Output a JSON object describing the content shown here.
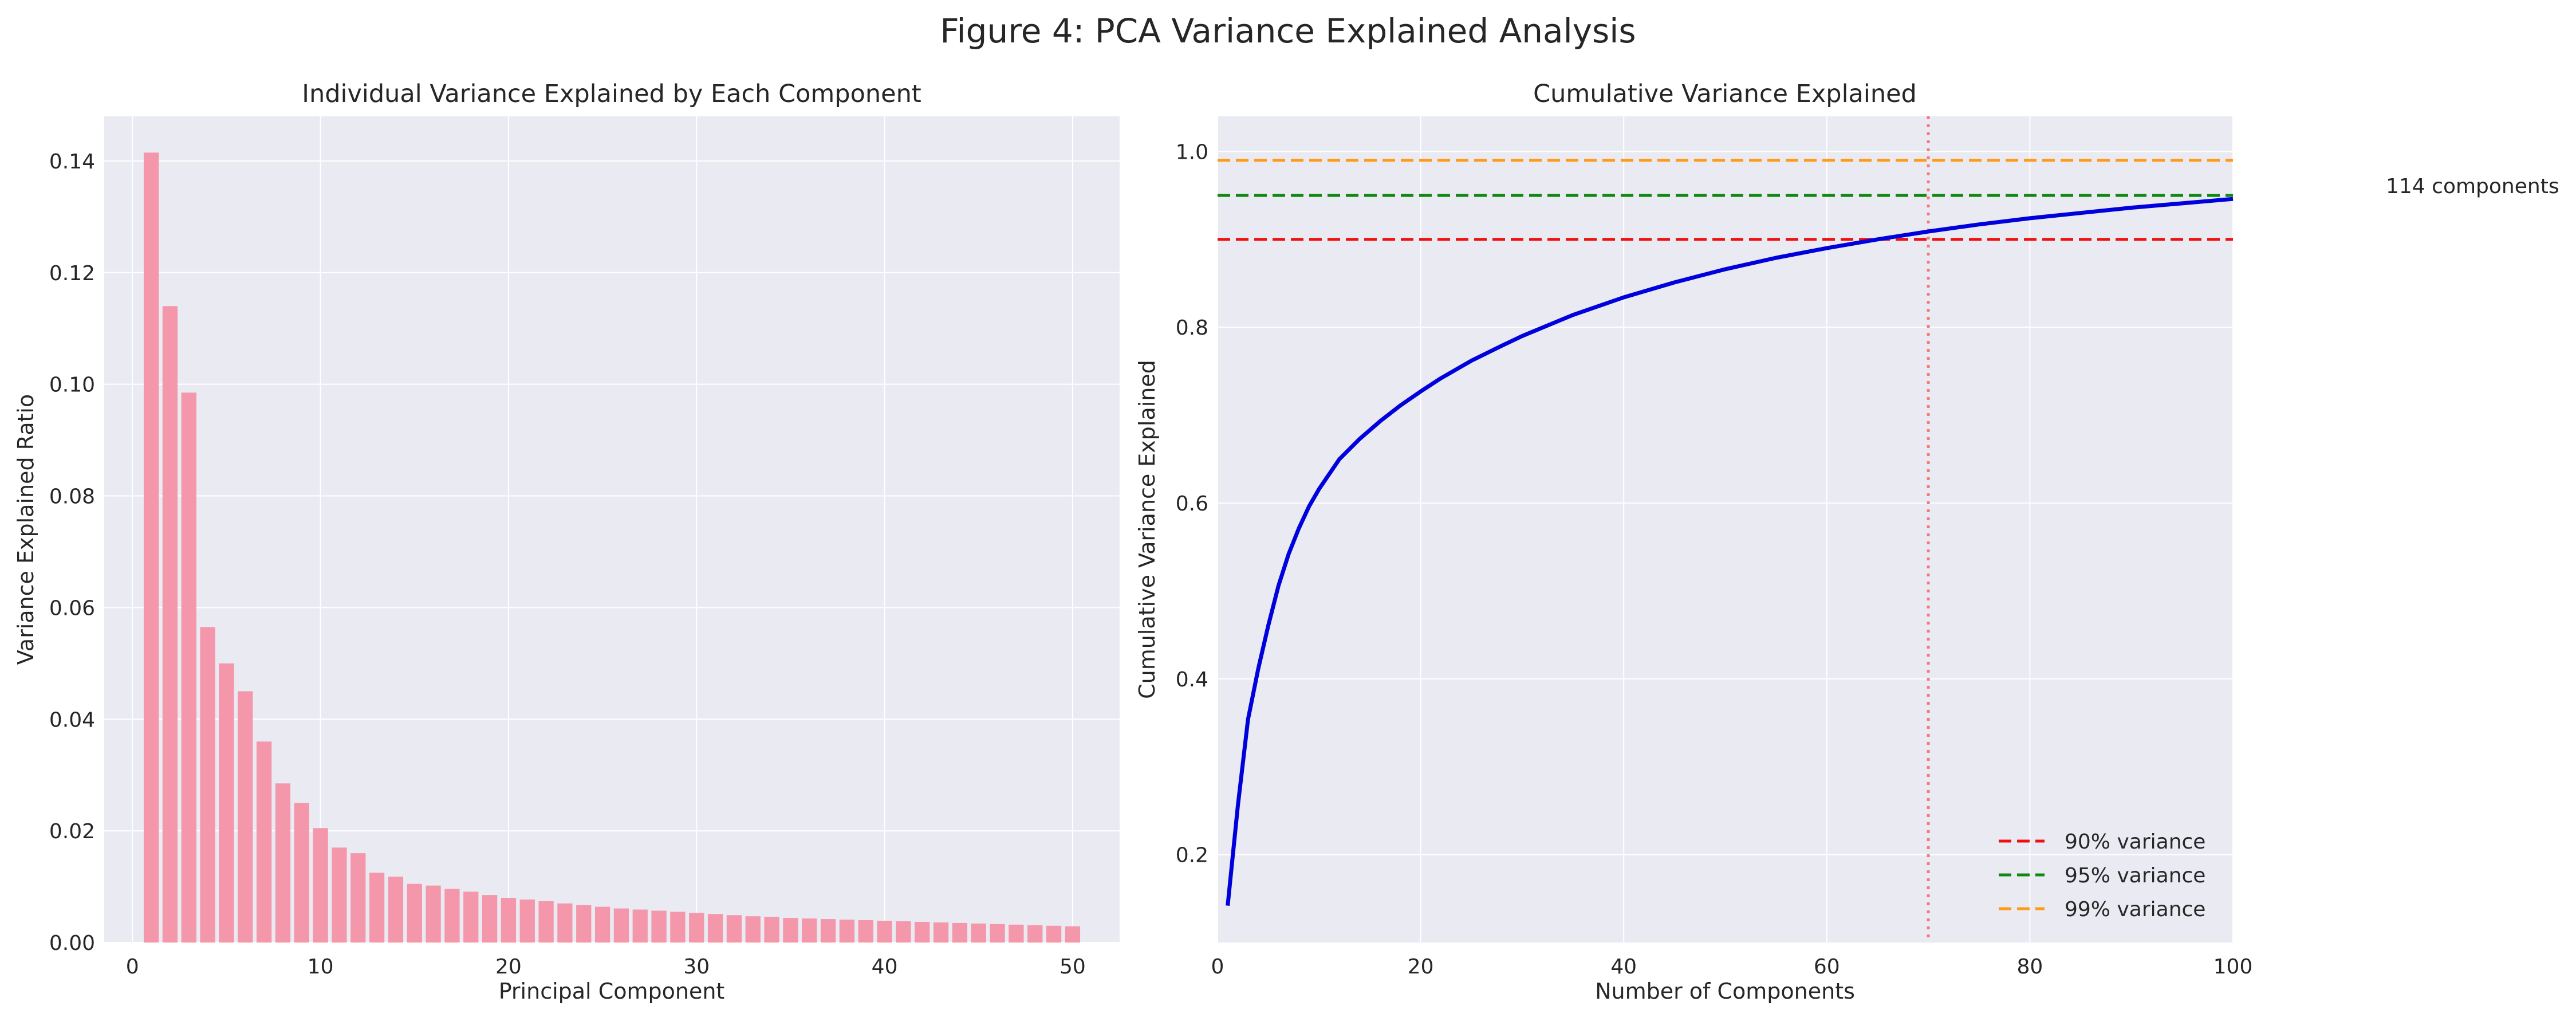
{
  "figure_title": "Figure 4: PCA Variance Explained Analysis",
  "annotation": "114 components",
  "colors": {
    "panel_bg": "#eaeaf2",
    "grid": "#ffffff",
    "bar": "#f497aa",
    "cumulative_line": "#0000dd",
    "threshold_90": "#ee1111",
    "threshold_95": "#118811",
    "threshold_99": "#ff9a1a",
    "marker_line": "#f27b7b"
  },
  "chart_data": [
    {
      "type": "bar",
      "title": "Individual Variance Explained by Each Component",
      "xlabel": "Principal Component",
      "ylabel": "Variance Explained Ratio",
      "xlim": [
        -1.5,
        52.5
      ],
      "ylim": [
        0,
        0.148
      ],
      "xticks": [
        0,
        10,
        20,
        30,
        40,
        50
      ],
      "yticks": [
        0.0,
        0.02,
        0.04,
        0.06,
        0.08,
        0.1,
        0.12,
        0.14
      ],
      "ytick_labels": [
        "0.00",
        "0.02",
        "0.04",
        "0.06",
        "0.08",
        "0.10",
        "0.12",
        "0.14"
      ],
      "grid": true,
      "x": [
        1,
        2,
        3,
        4,
        5,
        6,
        7,
        8,
        9,
        10,
        11,
        12,
        13,
        14,
        15,
        16,
        17,
        18,
        19,
        20,
        21,
        22,
        23,
        24,
        25,
        26,
        27,
        28,
        29,
        30,
        31,
        32,
        33,
        34,
        35,
        36,
        37,
        38,
        39,
        40,
        41,
        42,
        43,
        44,
        45,
        46,
        47,
        48,
        49,
        50
      ],
      "values": [
        0.1415,
        0.114,
        0.0985,
        0.0565,
        0.05,
        0.045,
        0.036,
        0.0285,
        0.025,
        0.0205,
        0.017,
        0.016,
        0.0125,
        0.0118,
        0.0105,
        0.0102,
        0.0096,
        0.0091,
        0.0085,
        0.008,
        0.0077,
        0.0074,
        0.007,
        0.0067,
        0.0064,
        0.0061,
        0.0059,
        0.0057,
        0.0055,
        0.0053,
        0.0051,
        0.0049,
        0.0047,
        0.0046,
        0.0044,
        0.0043,
        0.0042,
        0.0041,
        0.004,
        0.0039,
        0.0038,
        0.0037,
        0.0036,
        0.0035,
        0.0034,
        0.0033,
        0.0032,
        0.0031,
        0.003,
        0.0029
      ]
    },
    {
      "type": "line",
      "title": "Cumulative Variance Explained",
      "xlabel": "Number of Components",
      "ylabel": "Cumulative Variance Explained",
      "xlim": [
        0,
        100
      ],
      "ylim": [
        0.1,
        1.04
      ],
      "xticks": [
        0,
        20,
        40,
        60,
        80,
        100
      ],
      "yticks": [
        0.2,
        0.4,
        0.6,
        0.8,
        1.0
      ],
      "ytick_labels": [
        "0.2",
        "0.4",
        "0.6",
        "0.8",
        "1.0"
      ],
      "grid": true,
      "legend_position": "lower-right",
      "series": [
        {
          "x": [
            1,
            2,
            3,
            4,
            5,
            6,
            7,
            8,
            9,
            10,
            12,
            14,
            16,
            18,
            20,
            22,
            25,
            28,
            30,
            35,
            40,
            45,
            50,
            55,
            60,
            65,
            70,
            75,
            80,
            85,
            90,
            95,
            100
          ],
          "values": [
            0.142,
            0.256,
            0.354,
            0.411,
            0.461,
            0.506,
            0.542,
            0.571,
            0.596,
            0.616,
            0.65,
            0.673,
            0.693,
            0.711,
            0.727,
            0.742,
            0.762,
            0.779,
            0.79,
            0.814,
            0.834,
            0.851,
            0.866,
            0.879,
            0.89,
            0.9,
            0.909,
            0.917,
            0.924,
            0.93,
            0.936,
            0.941,
            0.946
          ]
        }
      ],
      "hlines": [
        {
          "y": 0.9,
          "label": "90% variance"
        },
        {
          "y": 0.95,
          "label": "95% variance"
        },
        {
          "y": 0.99,
          "label": "99% variance"
        }
      ],
      "vline_x": 70
    }
  ]
}
